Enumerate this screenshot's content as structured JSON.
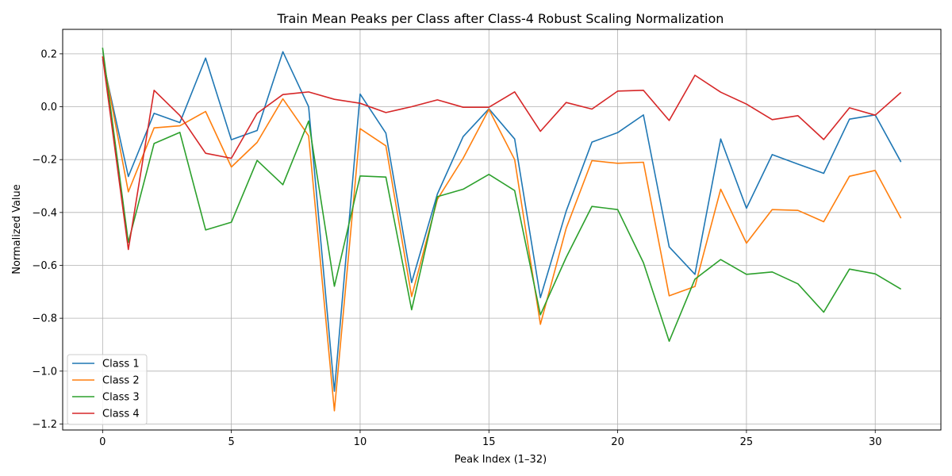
{
  "chart_data": {
    "type": "line",
    "title": "Train Mean Peaks per Class after Class-4 Robust Scaling Normalization",
    "xlabel": "Peak Index (1–32)",
    "ylabel": "Normalized Value",
    "xlim": [
      -1.55,
      32.55
    ],
    "ylim": [
      -1.2226,
      0.2926
    ],
    "xticks": [
      0,
      5,
      10,
      15,
      20,
      25,
      30
    ],
    "yticks": [
      -1.2,
      -1.0,
      -0.8,
      -0.6,
      -0.4,
      -0.2,
      0.0,
      0.2
    ],
    "ytick_labels": [
      "−1.2",
      "−1.0",
      "−0.8",
      "−0.6",
      "−0.4",
      "−0.2",
      "0.0",
      "0.2"
    ],
    "grid": true,
    "legend_position": "lower-left",
    "x": [
      0,
      1,
      2,
      3,
      4,
      5,
      6,
      7,
      8,
      9,
      10,
      11,
      12,
      13,
      14,
      15,
      16,
      17,
      18,
      19,
      20,
      21,
      22,
      23,
      24,
      25,
      26,
      27,
      28,
      29,
      30,
      31
    ],
    "series": [
      {
        "name": "Class 1",
        "color": "#1f77b4",
        "values": [
          0.18,
          -0.264,
          -0.025,
          -0.06,
          0.184,
          -0.125,
          -0.09,
          0.208,
          0.0,
          -1.076,
          0.048,
          -0.1,
          -0.665,
          -0.33,
          -0.113,
          -0.008,
          -0.122,
          -0.722,
          -0.395,
          -0.134,
          -0.098,
          -0.031,
          -0.53,
          -0.634,
          -0.122,
          -0.384,
          -0.181,
          -0.217,
          -0.252,
          -0.047,
          -0.031,
          -0.209
        ]
      },
      {
        "name": "Class 2",
        "color": "#ff7f0e",
        "values": [
          0.19,
          -0.322,
          -0.08,
          -0.072,
          -0.018,
          -0.228,
          -0.135,
          0.03,
          -0.11,
          -1.15,
          -0.083,
          -0.148,
          -0.718,
          -0.35,
          -0.195,
          -0.01,
          -0.2,
          -0.823,
          -0.46,
          -0.204,
          -0.214,
          -0.21,
          -0.715,
          -0.68,
          -0.312,
          -0.516,
          -0.389,
          -0.392,
          -0.435,
          -0.263,
          -0.241,
          -0.422
        ]
      },
      {
        "name": "Class 3",
        "color": "#2ca02c",
        "values": [
          0.223,
          -0.513,
          -0.139,
          -0.097,
          -0.466,
          -0.437,
          -0.203,
          -0.295,
          -0.054,
          -0.679,
          -0.262,
          -0.266,
          -0.768,
          -0.34,
          -0.312,
          -0.256,
          -0.317,
          -0.787,
          -0.57,
          -0.377,
          -0.389,
          -0.59,
          -0.887,
          -0.652,
          -0.578,
          -0.634,
          -0.625,
          -0.67,
          -0.777,
          -0.614,
          -0.632,
          -0.69
        ]
      },
      {
        "name": "Class 4",
        "color": "#d62728",
        "values": [
          0.19,
          -0.54,
          0.062,
          -0.033,
          -0.176,
          -0.195,
          -0.025,
          0.046,
          0.056,
          0.028,
          0.013,
          -0.022,
          0.0,
          0.026,
          -0.002,
          -0.002,
          0.056,
          -0.093,
          0.016,
          -0.009,
          0.059,
          0.062,
          -0.052,
          0.119,
          0.055,
          0.01,
          -0.049,
          -0.034,
          -0.124,
          -0.004,
          -0.032,
          0.054
        ]
      }
    ]
  }
}
